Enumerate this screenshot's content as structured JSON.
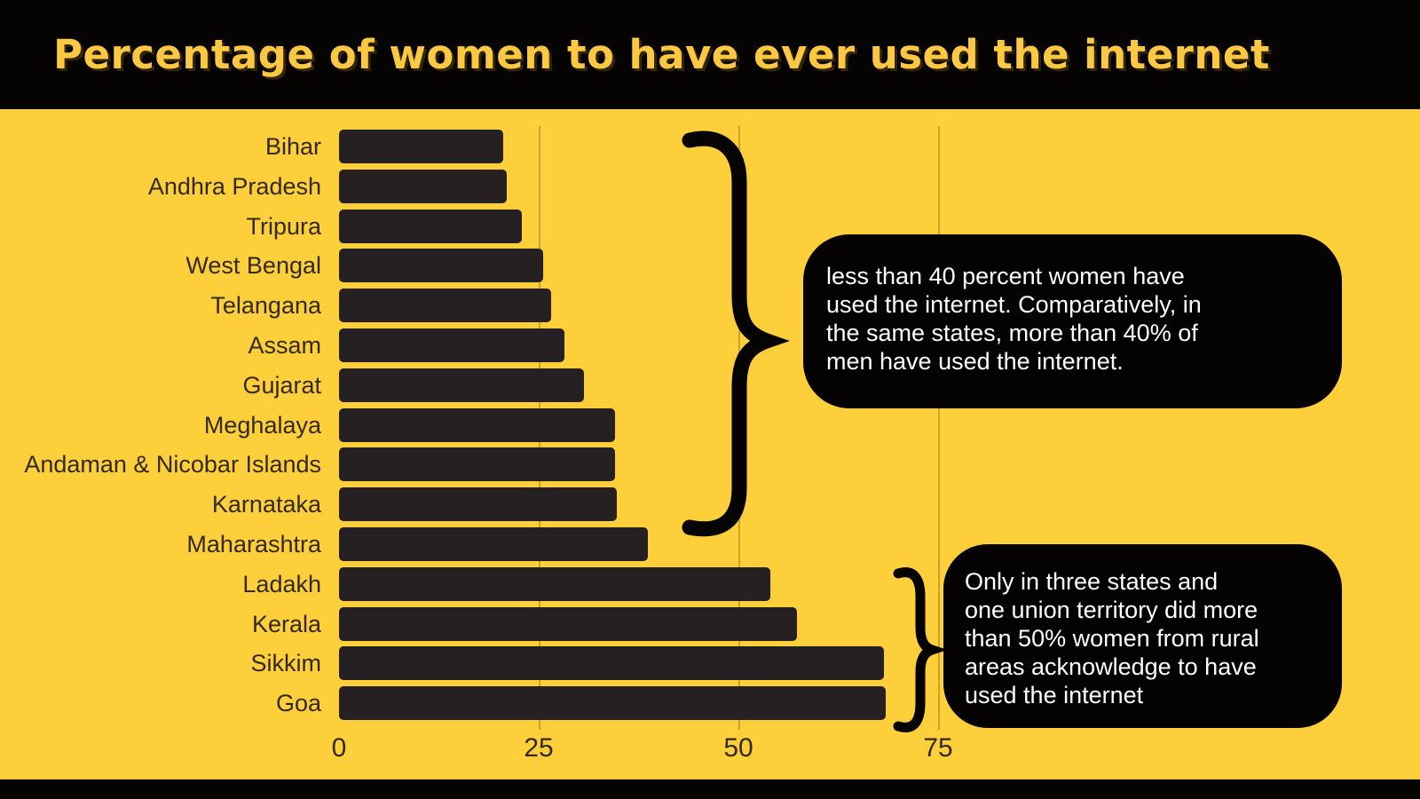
{
  "header": {
    "title": "Percentage of women to have ever used the internet"
  },
  "chart_data": {
    "type": "bar",
    "orientation": "horizontal",
    "title": "Percentage of women to have ever used the internet",
    "categories": [
      "Bihar",
      "Andhra Pradesh",
      "Tripura",
      "West Bengal",
      "Telangana",
      "Assam",
      "Gujarat",
      "Meghalaya",
      "Andaman & Nicobar Islands",
      "Karnataka",
      "Maharashtra",
      "Ladakh",
      "Kerala",
      "Sikkim",
      "Goa"
    ],
    "values": [
      20.6,
      21.0,
      22.9,
      25.5,
      26.5,
      28.2,
      30.7,
      34.5,
      34.6,
      34.8,
      38.7,
      54.0,
      57.3,
      68.2,
      68.4
    ],
    "xlabel": "",
    "ylabel": "",
    "x_ticks": [
      0,
      25,
      50,
      75
    ],
    "xlim": [
      0,
      83
    ],
    "grid": "vertical",
    "legend": "none",
    "bar_color": "#272022",
    "background_color": "#FDCF3B",
    "header_color": "#060303",
    "title_color": "#FBC843"
  },
  "annotations": {
    "group1": {
      "text": "less than 40 percent women have\nused the internet. Comparatively, in\nthe same states, more than 40% of\nmen have used the internet."
    },
    "group2": {
      "text": "Only in three states and\none union territory did more\nthan 50% women from rural\nareas acknowledge to have\nused the internet"
    }
  }
}
